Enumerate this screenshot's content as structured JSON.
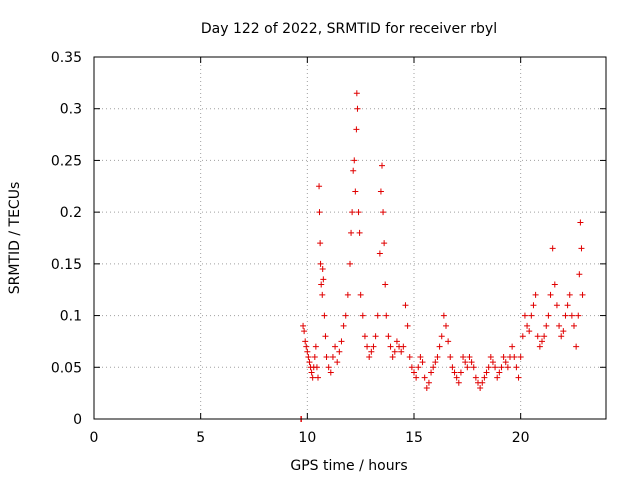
{
  "chart_data": {
    "type": "scatter",
    "title": "Day 122 of 2022, SRMTID for receiver rbyl",
    "xlabel": "GPS time / hours",
    "ylabel": "SRMTID / TECUs",
    "xlim": [
      0,
      24
    ],
    "ylim": [
      0,
      0.35
    ],
    "xticks": [
      "0",
      "5",
      "10",
      "15",
      "20"
    ],
    "yticks": [
      "0",
      "0.05",
      "0.1",
      "0.15",
      "0.2",
      "0.25",
      "0.3",
      "0.35"
    ],
    "grid": true,
    "marker": "plus",
    "color": "#e00000",
    "series": [
      {
        "values": [
          [
            9.7,
            0.0
          ],
          [
            9.72,
            0.0
          ],
          [
            9.8,
            0.09
          ],
          [
            9.85,
            0.085
          ],
          [
            9.9,
            0.075
          ],
          [
            9.95,
            0.07
          ],
          [
            10.0,
            0.065
          ],
          [
            10.05,
            0.06
          ],
          [
            10.1,
            0.055
          ],
          [
            10.15,
            0.05
          ],
          [
            10.2,
            0.045
          ],
          [
            10.25,
            0.04
          ],
          [
            10.3,
            0.05
          ],
          [
            10.35,
            0.06
          ],
          [
            10.4,
            0.07
          ],
          [
            10.45,
            0.05
          ],
          [
            10.5,
            0.04
          ],
          [
            10.55,
            0.225
          ],
          [
            10.57,
            0.2
          ],
          [
            10.6,
            0.17
          ],
          [
            10.62,
            0.15
          ],
          [
            10.65,
            0.13
          ],
          [
            10.7,
            0.12
          ],
          [
            10.72,
            0.145
          ],
          [
            10.75,
            0.135
          ],
          [
            10.8,
            0.1
          ],
          [
            10.85,
            0.08
          ],
          [
            10.9,
            0.06
          ],
          [
            11.0,
            0.05
          ],
          [
            11.1,
            0.045
          ],
          [
            11.2,
            0.06
          ],
          [
            11.3,
            0.07
          ],
          [
            11.4,
            0.055
          ],
          [
            11.5,
            0.065
          ],
          [
            11.6,
            0.075
          ],
          [
            11.7,
            0.09
          ],
          [
            11.8,
            0.1
          ],
          [
            11.9,
            0.12
          ],
          [
            12.0,
            0.15
          ],
          [
            12.05,
            0.18
          ],
          [
            12.1,
            0.2
          ],
          [
            12.15,
            0.24
          ],
          [
            12.2,
            0.25
          ],
          [
            12.25,
            0.22
          ],
          [
            12.3,
            0.28
          ],
          [
            12.32,
            0.315
          ],
          [
            12.35,
            0.3
          ],
          [
            12.4,
            0.2
          ],
          [
            12.45,
            0.18
          ],
          [
            12.5,
            0.12
          ],
          [
            12.6,
            0.1
          ],
          [
            12.7,
            0.08
          ],
          [
            12.8,
            0.07
          ],
          [
            12.9,
            0.06
          ],
          [
            13.0,
            0.065
          ],
          [
            13.1,
            0.07
          ],
          [
            13.2,
            0.08
          ],
          [
            13.3,
            0.1
          ],
          [
            13.4,
            0.16
          ],
          [
            13.45,
            0.22
          ],
          [
            13.5,
            0.245
          ],
          [
            13.55,
            0.2
          ],
          [
            13.6,
            0.17
          ],
          [
            13.65,
            0.13
          ],
          [
            13.7,
            0.1
          ],
          [
            13.8,
            0.08
          ],
          [
            13.9,
            0.07
          ],
          [
            14.0,
            0.06
          ],
          [
            14.1,
            0.065
          ],
          [
            14.2,
            0.075
          ],
          [
            14.3,
            0.07
          ],
          [
            14.4,
            0.065
          ],
          [
            14.5,
            0.07
          ],
          [
            14.6,
            0.11
          ],
          [
            14.7,
            0.09
          ],
          [
            14.8,
            0.06
          ],
          [
            14.9,
            0.05
          ],
          [
            15.0,
            0.045
          ],
          [
            15.1,
            0.04
          ],
          [
            15.2,
            0.05
          ],
          [
            15.3,
            0.06
          ],
          [
            15.4,
            0.055
          ],
          [
            15.5,
            0.04
          ],
          [
            15.6,
            0.03
          ],
          [
            15.7,
            0.035
          ],
          [
            15.8,
            0.045
          ],
          [
            15.9,
            0.05
          ],
          [
            16.0,
            0.055
          ],
          [
            16.1,
            0.06
          ],
          [
            16.2,
            0.07
          ],
          [
            16.3,
            0.08
          ],
          [
            16.4,
            0.1
          ],
          [
            16.5,
            0.09
          ],
          [
            16.6,
            0.075
          ],
          [
            16.7,
            0.06
          ],
          [
            16.8,
            0.05
          ],
          [
            16.9,
            0.045
          ],
          [
            17.0,
            0.04
          ],
          [
            17.1,
            0.035
          ],
          [
            17.2,
            0.045
          ],
          [
            17.3,
            0.06
          ],
          [
            17.4,
            0.055
          ],
          [
            17.5,
            0.05
          ],
          [
            17.6,
            0.06
          ],
          [
            17.7,
            0.055
          ],
          [
            17.8,
            0.05
          ],
          [
            17.9,
            0.04
          ],
          [
            18.0,
            0.035
          ],
          [
            18.1,
            0.03
          ],
          [
            18.2,
            0.035
          ],
          [
            18.3,
            0.04
          ],
          [
            18.4,
            0.045
          ],
          [
            18.5,
            0.05
          ],
          [
            18.6,
            0.06
          ],
          [
            18.7,
            0.055
          ],
          [
            18.8,
            0.05
          ],
          [
            18.9,
            0.04
          ],
          [
            19.0,
            0.045
          ],
          [
            19.1,
            0.05
          ],
          [
            19.2,
            0.06
          ],
          [
            19.3,
            0.055
          ],
          [
            19.4,
            0.05
          ],
          [
            19.5,
            0.06
          ],
          [
            19.6,
            0.07
          ],
          [
            19.7,
            0.06
          ],
          [
            19.8,
            0.05
          ],
          [
            19.9,
            0.04
          ],
          [
            20.0,
            0.06
          ],
          [
            20.1,
            0.08
          ],
          [
            20.2,
            0.1
          ],
          [
            20.3,
            0.09
          ],
          [
            20.4,
            0.085
          ],
          [
            20.5,
            0.1
          ],
          [
            20.6,
            0.11
          ],
          [
            20.7,
            0.12
          ],
          [
            20.8,
            0.08
          ],
          [
            20.9,
            0.07
          ],
          [
            21.0,
            0.075
          ],
          [
            21.1,
            0.08
          ],
          [
            21.2,
            0.09
          ],
          [
            21.3,
            0.1
          ],
          [
            21.4,
            0.12
          ],
          [
            21.5,
            0.165
          ],
          [
            21.6,
            0.13
          ],
          [
            21.7,
            0.11
          ],
          [
            21.8,
            0.09
          ],
          [
            21.9,
            0.08
          ],
          [
            22.0,
            0.085
          ],
          [
            22.1,
            0.1
          ],
          [
            22.2,
            0.11
          ],
          [
            22.3,
            0.12
          ],
          [
            22.4,
            0.1
          ],
          [
            22.5,
            0.09
          ],
          [
            22.6,
            0.07
          ],
          [
            22.7,
            0.1
          ],
          [
            22.75,
            0.14
          ],
          [
            22.8,
            0.19
          ],
          [
            22.85,
            0.165
          ],
          [
            22.9,
            0.12
          ]
        ]
      }
    ]
  }
}
